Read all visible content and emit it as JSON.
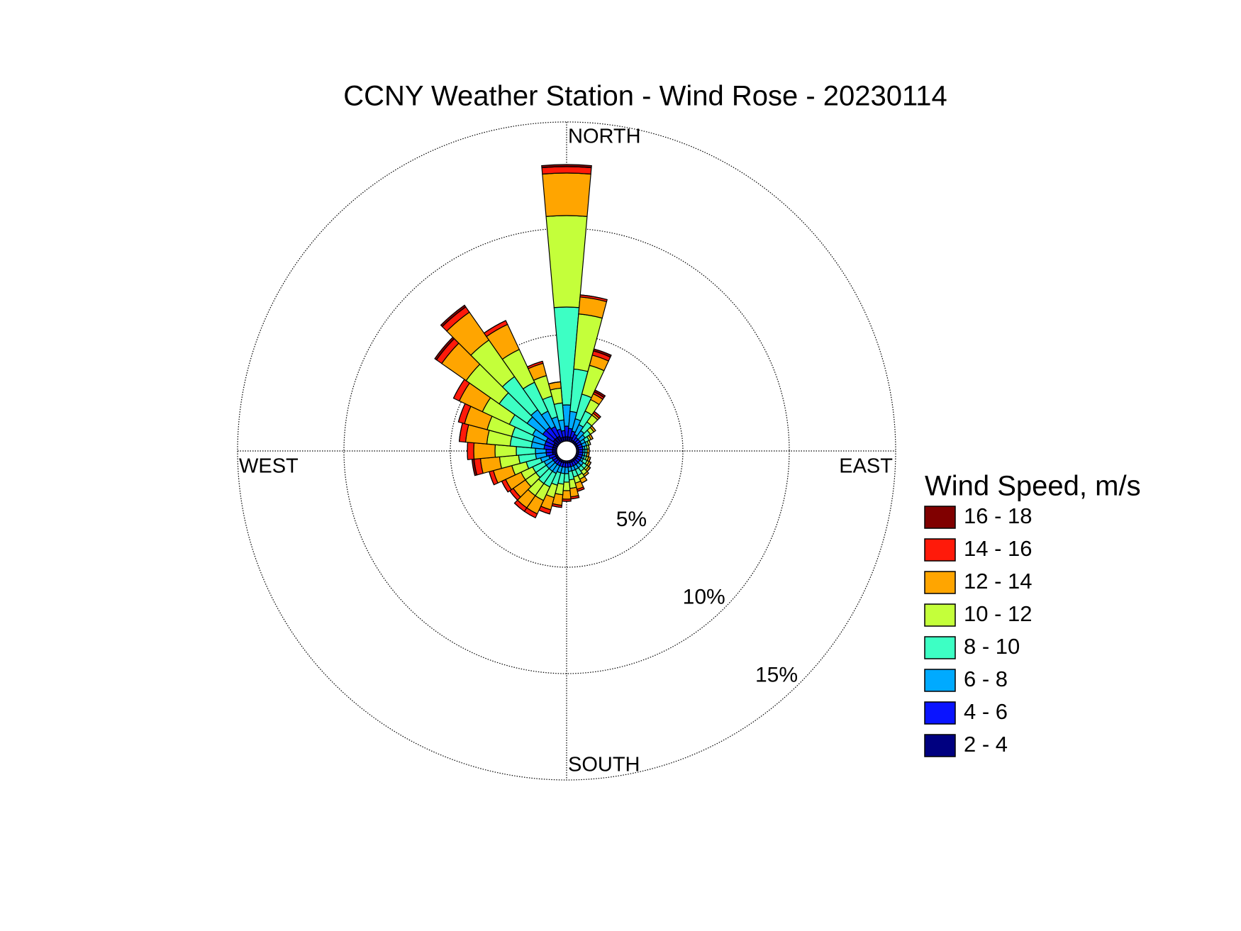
{
  "chart_data": {
    "type": "windrose",
    "title": "CCNY Weather Station - Wind Rose - 20230114",
    "direction_labels": [
      "NORTH",
      "EAST",
      "SOUTH",
      "WEST"
    ],
    "x": [
      0,
      10,
      20,
      30,
      40,
      50,
      60,
      70,
      80,
      90,
      100,
      110,
      120,
      130,
      140,
      150,
      160,
      170,
      180,
      190,
      200,
      210,
      220,
      230,
      240,
      250,
      260,
      270,
      280,
      290,
      300,
      310,
      320,
      330,
      340,
      350
    ],
    "rlim": [
      0,
      15
    ],
    "rticks": [
      {
        "value": 5,
        "label": "5%"
      },
      {
        "value": 10,
        "label": "10%"
      },
      {
        "value": 15,
        "label": "15%"
      }
    ],
    "grid": true,
    "legend_title": "Wind Speed, m/s",
    "series": [
      {
        "name": "2 - 4",
        "color": "#000080",
        "values": [
          0.2,
          0.2,
          0.2,
          0.1,
          0.1,
          0.1,
          0.1,
          0.1,
          0.1,
          0.1,
          0.1,
          0.1,
          0.1,
          0.1,
          0.1,
          0.1,
          0.1,
          0.1,
          0.1,
          0.1,
          0.1,
          0.1,
          0.1,
          0.1,
          0.1,
          0.1,
          0.2,
          0.2,
          0.2,
          0.2,
          0.2,
          0.3,
          0.3,
          0.3,
          0.2,
          0.2
        ]
      },
      {
        "name": "4 - 6",
        "color": "#0a14ff",
        "values": [
          0.5,
          0.4,
          0.3,
          0.3,
          0.2,
          0.2,
          0.2,
          0.2,
          0.2,
          0.2,
          0.2,
          0.2,
          0.2,
          0.2,
          0.2,
          0.2,
          0.2,
          0.2,
          0.2,
          0.2,
          0.2,
          0.2,
          0.2,
          0.2,
          0.2,
          0.3,
          0.3,
          0.3,
          0.4,
          0.4,
          0.4,
          0.6,
          0.6,
          0.5,
          0.4,
          0.3
        ]
      },
      {
        "name": "6 - 8",
        "color": "#00aaff",
        "values": [
          1.0,
          0.8,
          0.6,
          0.5,
          0.4,
          0.3,
          0.2,
          0.2,
          0.1,
          0.1,
          0.1,
          0.1,
          0.1,
          0.2,
          0.2,
          0.2,
          0.2,
          0.2,
          0.3,
          0.3,
          0.3,
          0.4,
          0.4,
          0.4,
          0.4,
          0.4,
          0.5,
          0.5,
          0.6,
          0.6,
          0.7,
          0.9,
          1.0,
          0.8,
          0.6,
          0.5
        ]
      },
      {
        "name": "8 - 10",
        "color": "#3dffc4",
        "values": [
          4.6,
          2.0,
          1.2,
          0.7,
          0.5,
          0.3,
          0.2,
          0.1,
          0.1,
          0.1,
          0.1,
          0.1,
          0.2,
          0.2,
          0.2,
          0.3,
          0.3,
          0.4,
          0.4,
          0.5,
          0.6,
          0.7,
          0.7,
          0.6,
          0.6,
          0.7,
          0.8,
          0.9,
          1.0,
          1.0,
          1.2,
          1.6,
          1.9,
          1.5,
          1.0,
          0.8
        ]
      },
      {
        "name": "10 - 12",
        "color": "#c4ff3a",
        "values": [
          4.3,
          2.6,
          1.4,
          0.6,
          0.4,
          0.2,
          0.1,
          0.1,
          0.1,
          0,
          0,
          0.1,
          0.1,
          0.1,
          0.2,
          0.2,
          0.3,
          0.4,
          0.4,
          0.5,
          0.6,
          0.7,
          0.7,
          0.6,
          0.6,
          0.7,
          0.9,
          1.0,
          1.1,
          1.2,
          1.4,
          1.9,
          2.1,
          1.7,
          1.0,
          0.7
        ]
      },
      {
        "name": "12 - 14",
        "color": "#ffa500",
        "values": [
          2.0,
          0.8,
          0.5,
          0.3,
          0.1,
          0.1,
          0.1,
          0,
          0,
          0.1,
          0.1,
          0.1,
          0.1,
          0.1,
          0.1,
          0.2,
          0.3,
          0.4,
          0.4,
          0.5,
          0.6,
          0.7,
          0.7,
          0.7,
          0.8,
          0.9,
          0.9,
          1.0,
          1.0,
          1.1,
          1.2,
          1.4,
          1.6,
          1.3,
          0.6,
          0.3
        ]
      },
      {
        "name": "14 - 16",
        "color": "#ff1a0a",
        "values": [
          0.3,
          0.1,
          0.2,
          0.1,
          0.1,
          0,
          0,
          0,
          0,
          0,
          0,
          0,
          0,
          0,
          0,
          0,
          0.1,
          0.1,
          0.1,
          0.1,
          0.2,
          0.2,
          0.2,
          0.2,
          0.2,
          0.2,
          0.3,
          0.3,
          0.3,
          0.3,
          0.3,
          0.3,
          0.3,
          0.2,
          0.1,
          0
        ]
      },
      {
        "name": "16 - 18",
        "color": "#800000",
        "values": [
          0.1,
          0,
          0.1,
          0.1,
          0,
          0,
          0,
          0,
          0,
          0,
          0,
          0,
          0,
          0,
          0,
          0,
          0,
          0,
          0,
          0,
          0,
          0,
          0,
          0,
          0,
          0,
          0.1,
          0,
          0,
          0,
          0,
          0.1,
          0.1,
          0,
          0,
          0
        ]
      }
    ]
  }
}
